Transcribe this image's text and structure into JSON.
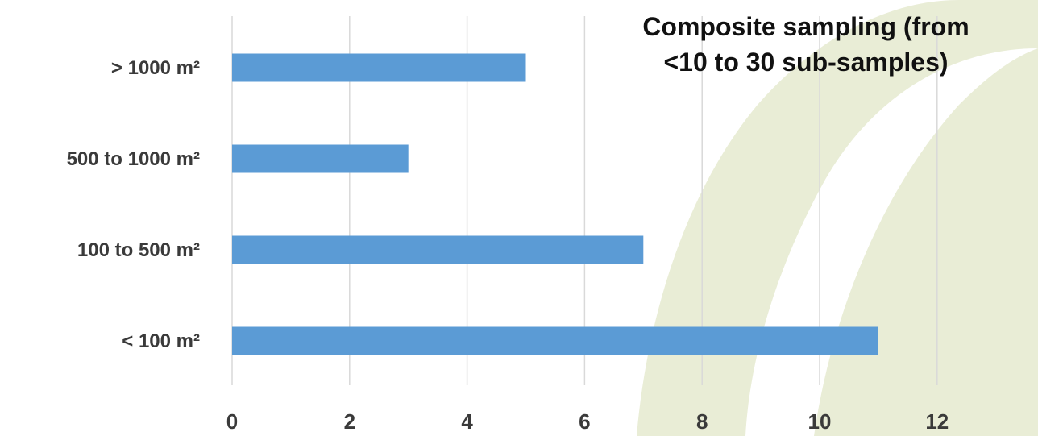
{
  "chart_data": {
    "type": "bar",
    "orientation": "horizontal",
    "title_lines": [
      "Composite sampling (from",
      "<10 to 30 sub-samples)"
    ],
    "categories": [
      "< 100 m²",
      "100 to 500 m²",
      "500 to 1000 m²",
      "> 1000 m²"
    ],
    "values": [
      11,
      7,
      3,
      5
    ],
    "xlim": [
      0,
      14
    ],
    "xticks": [
      "0",
      "2",
      "4",
      "6",
      "8",
      "10",
      "12"
    ],
    "grid": "vertical",
    "bar_color": "#5b9bd5",
    "gridline_color": "#d9d9d9"
  },
  "background": {
    "base_color": "#ffffff",
    "shape_color": "#e9edd6",
    "decoration": "light olive curved swoosh shapes on right side"
  }
}
